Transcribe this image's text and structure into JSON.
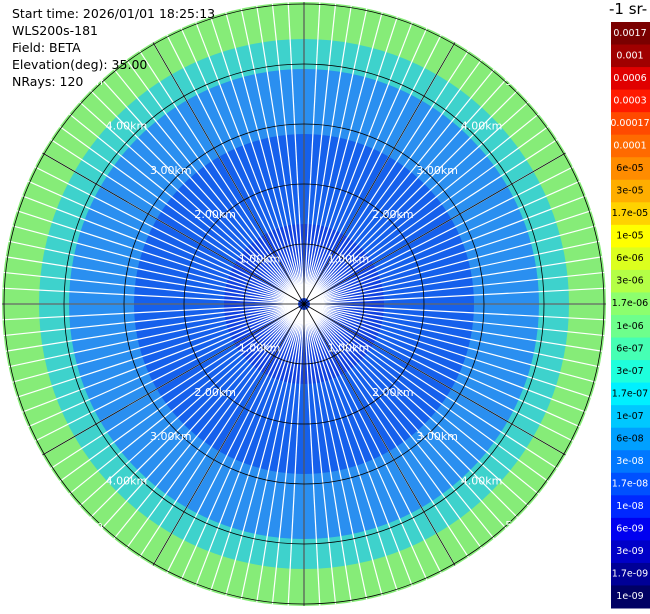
{
  "header": {
    "lines": [
      "Start time: 2026/01/01 18:25:13",
      "WLS200s-181",
      "Field: BETA",
      "Elevation(deg): 35.00",
      "NRays: 120"
    ]
  },
  "rings": {
    "labels": [
      "1.00km",
      "2.00km",
      "3.00km",
      "4.00km",
      "5.00km"
    ]
  },
  "colorbar": {
    "title": "-1 sr-",
    "entries": [
      {
        "label": "0.0017",
        "color": "#7a0000"
      },
      {
        "label": "0.001",
        "color": "#a00000"
      },
      {
        "label": "0.0006",
        "color": "#e00000"
      },
      {
        "label": "0.0003",
        "color": "#ff1a00"
      },
      {
        "label": "0.00017",
        "color": "#ff4a00"
      },
      {
        "label": "0.0001",
        "color": "#ff6a00"
      },
      {
        "label": "6e-05",
        "color": "#ff8c00"
      },
      {
        "label": "3e-05",
        "color": "#ffae00"
      },
      {
        "label": "1.7e-05",
        "color": "#ffd200"
      },
      {
        "label": "1e-05",
        "color": "#ffff00"
      },
      {
        "label": "6e-06",
        "color": "#dcff1e"
      },
      {
        "label": "3e-06",
        "color": "#b4ff46"
      },
      {
        "label": "1.7e-06",
        "color": "#8cff6e"
      },
      {
        "label": "1e-06",
        "color": "#6eff8c"
      },
      {
        "label": "6e-07",
        "color": "#46ffb4"
      },
      {
        "label": "3e-07",
        "color": "#1effdc"
      },
      {
        "label": "1.7e-07",
        "color": "#00f0ff"
      },
      {
        "label": "1e-07",
        "color": "#00c8ff"
      },
      {
        "label": "6e-08",
        "color": "#00a0ff"
      },
      {
        "label": "3e-08",
        "color": "#0078ff"
      },
      {
        "label": "1.7e-08",
        "color": "#0050ff"
      },
      {
        "label": "1e-08",
        "color": "#0028ff"
      },
      {
        "label": "6e-09",
        "color": "#0000f0"
      },
      {
        "label": "3e-09",
        "color": "#0000c8"
      },
      {
        "label": "1.7e-09",
        "color": "#000096"
      },
      {
        "label": "1e-09",
        "color": "#000064"
      }
    ]
  }
}
